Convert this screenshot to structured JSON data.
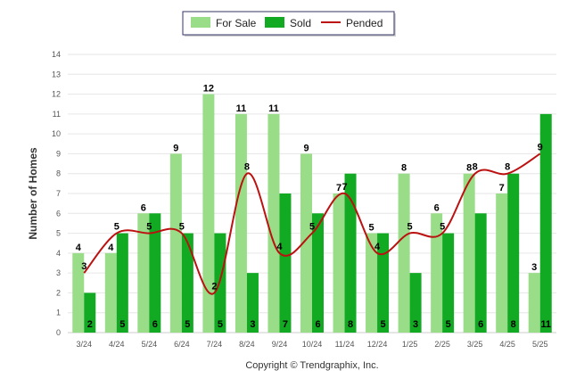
{
  "chart_data": {
    "type": "bar",
    "categories": [
      "3/24",
      "4/24",
      "5/24",
      "6/24",
      "7/24",
      "8/24",
      "9/24",
      "10/24",
      "11/24",
      "12/24",
      "1/25",
      "2/25",
      "3/25",
      "4/25",
      "5/25"
    ],
    "series": [
      {
        "name": "For Sale",
        "type": "bar",
        "color": "#99dd88",
        "values": [
          4,
          4,
          6,
          9,
          12,
          11,
          11,
          9,
          7,
          5,
          8,
          6,
          8,
          7,
          3
        ]
      },
      {
        "name": "Sold",
        "type": "bar",
        "color": "#11aa22",
        "values": [
          2,
          5,
          6,
          5,
          5,
          3,
          7,
          6,
          8,
          5,
          3,
          5,
          6,
          8,
          11
        ]
      },
      {
        "name": "Pended",
        "type": "line",
        "color": "#bb1111",
        "values": [
          3,
          5,
          5,
          5,
          2,
          8,
          4,
          5,
          7,
          4,
          5,
          5,
          8,
          8,
          9
        ]
      }
    ],
    "ylabel": "Number of Homes",
    "xlabel": "",
    "ylim": [
      0,
      14
    ],
    "yticks": [
      0,
      1,
      2,
      3,
      4,
      5,
      6,
      7,
      8,
      9,
      10,
      11,
      12,
      13,
      14
    ],
    "grid": true,
    "legend": "top-center"
  },
  "credit": "Copyright © Trendgraphix, Inc."
}
